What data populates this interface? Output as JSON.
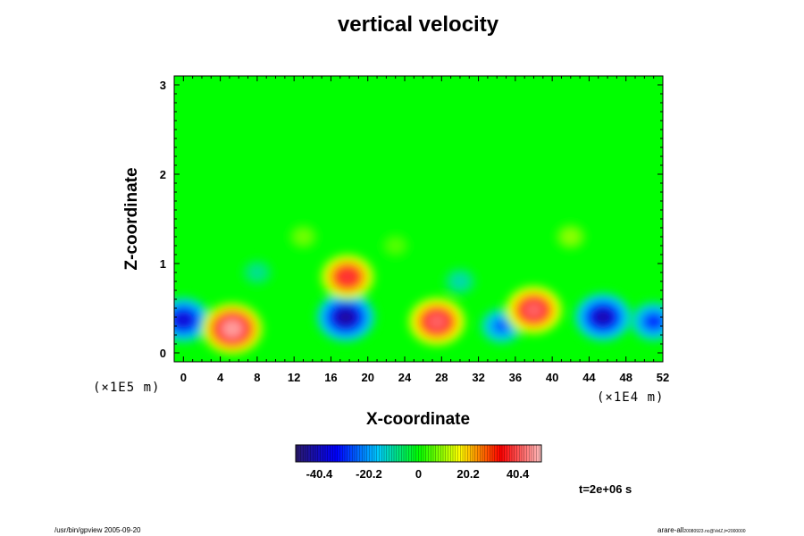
{
  "chart_data": {
    "type": "heatmap",
    "title": "vertical velocity",
    "xlabel": "X-coordinate",
    "ylabel": "Z-coordinate",
    "x_unit_label": "(×1E4 m)",
    "z_unit_label": "(×1E5 m)",
    "xlim": [
      -1,
      52
    ],
    "zlim": [
      -0.1,
      3.1
    ],
    "x_ticks": [
      0,
      4,
      8,
      12,
      16,
      20,
      24,
      28,
      32,
      36,
      40,
      44,
      48,
      52
    ],
    "z_ticks": [
      0,
      1,
      2,
      3
    ],
    "colorbar": {
      "range": [
        -50,
        50
      ],
      "tick_values": [
        -40.4,
        -20.2,
        0,
        20.2,
        40.4
      ],
      "tick_labels": [
        "-40.4",
        "-20.2",
        "0",
        "20.2",
        "40.4"
      ],
      "colors": [
        "#2a1a6a",
        "#0000ff",
        "#00c8ff",
        "#00ff00",
        "#ffff00",
        "#ff0000",
        "#ffc0c0"
      ]
    },
    "background_value": 0,
    "features": [
      {
        "x": 0.0,
        "z": 0.37,
        "value": -38
      },
      {
        "x": 5.3,
        "z": 0.27,
        "value": 47
      },
      {
        "x": 17.6,
        "z": 0.4,
        "value": -44
      },
      {
        "x": 17.8,
        "z": 0.85,
        "value": 38
      },
      {
        "x": 27.5,
        "z": 0.35,
        "value": 42
      },
      {
        "x": 34.5,
        "z": 0.3,
        "value": -25
      },
      {
        "x": 38.0,
        "z": 0.48,
        "value": 42
      },
      {
        "x": 45.5,
        "z": 0.4,
        "value": -42
      },
      {
        "x": 51.0,
        "z": 0.35,
        "value": -30
      },
      {
        "x": 13.0,
        "z": 1.3,
        "value": 8
      },
      {
        "x": 23.0,
        "z": 1.2,
        "value": 6
      },
      {
        "x": 42.0,
        "z": 1.3,
        "value": 10
      },
      {
        "x": 8.0,
        "z": 0.9,
        "value": -10
      },
      {
        "x": 30.0,
        "z": 0.8,
        "value": -12
      }
    ],
    "time_label": "t=2e+06 s"
  },
  "footer": {
    "left": "/usr/bin/gpview 2005-09-20",
    "right_main": "arare-all",
    "right_sub": "20080923.nc@VelZ,t=2000000"
  },
  "colors": {
    "background": "#ffffff",
    "axes": "#000000"
  }
}
